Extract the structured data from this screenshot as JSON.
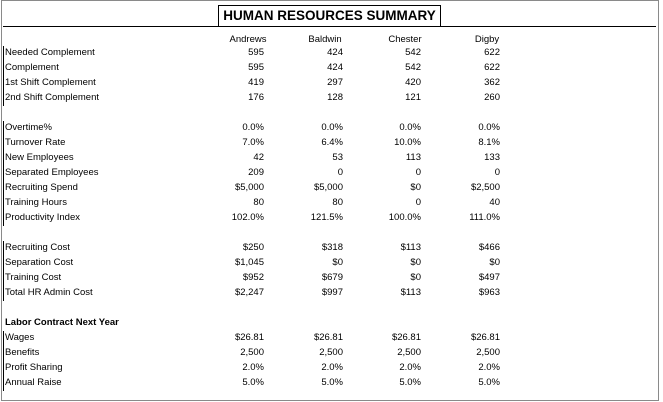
{
  "title": "HUMAN RESOURCES SUMMARY",
  "columns": [
    "Andrews",
    "Baldwin",
    "Chester",
    "Digby"
  ],
  "sections": [
    {
      "rows": [
        {
          "label": "Needed Complement",
          "values": [
            "595",
            "424",
            "542",
            "622"
          ]
        },
        {
          "label": "Complement",
          "values": [
            "595",
            "424",
            "542",
            "622"
          ]
        },
        {
          "label": "1st Shift Complement",
          "values": [
            "419",
            "297",
            "420",
            "362"
          ]
        },
        {
          "label": "2nd Shift Complement",
          "values": [
            "176",
            "128",
            "121",
            "260"
          ]
        }
      ]
    },
    {
      "rows": [
        {
          "label": "Overtime%",
          "values": [
            "0.0%",
            "0.0%",
            "0.0%",
            "0.0%"
          ]
        },
        {
          "label": "Turnover Rate",
          "values": [
            "7.0%",
            "6.4%",
            "10.0%",
            "8.1%"
          ]
        },
        {
          "label": "New Employees",
          "values": [
            "42",
            "53",
            "113",
            "133"
          ]
        },
        {
          "label": "Separated Employees",
          "values": [
            "209",
            "0",
            "0",
            "0"
          ]
        },
        {
          "label": "Recruiting Spend",
          "values": [
            "$5,000",
            "$5,000",
            "$0",
            "$2,500"
          ]
        },
        {
          "label": "Training Hours",
          "values": [
            "80",
            "80",
            "0",
            "40"
          ]
        },
        {
          "label": "Productivity Index",
          "values": [
            "102.0%",
            "121.5%",
            "100.0%",
            "111.0%"
          ]
        }
      ]
    },
    {
      "rows": [
        {
          "label": "Recruiting Cost",
          "values": [
            "$250",
            "$318",
            "$113",
            "$466"
          ]
        },
        {
          "label": "Separation Cost",
          "values": [
            "$1,045",
            "$0",
            "$0",
            "$0"
          ]
        },
        {
          "label": "Training Cost",
          "values": [
            "$952",
            "$679",
            "$0",
            "$497"
          ]
        },
        {
          "label": "Total HR Admin Cost",
          "values": [
            "$2,247",
            "$997",
            "$113",
            "$963"
          ]
        }
      ]
    },
    {
      "heading": "Labor Contract Next Year",
      "rows": [
        {
          "label": "Wages",
          "values": [
            "$26.81",
            "$26.81",
            "$26.81",
            "$26.81"
          ]
        },
        {
          "label": "Benefits",
          "values": [
            "2,500",
            "2,500",
            "2,500",
            "2,500"
          ]
        },
        {
          "label": "Profit Sharing",
          "values": [
            "2.0%",
            "2.0%",
            "2.0%",
            "2.0%"
          ]
        },
        {
          "label": "Annual Raise",
          "values": [
            "5.0%",
            "5.0%",
            "5.0%",
            "5.0%"
          ]
        }
      ]
    }
  ]
}
